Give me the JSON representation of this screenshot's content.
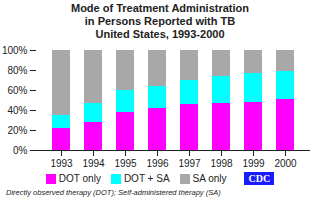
{
  "chart_data": {
    "type": "bar",
    "title": "Mode of Treatment Administration\nin Persons Reported with TB\nUnited States, 1993-2000",
    "categories": [
      "1993",
      "1994",
      "1995",
      "1996",
      "1997",
      "1998",
      "1999",
      "2000"
    ],
    "series": [
      {
        "name": "DOT only",
        "color": "#ff00ff",
        "values": [
          22,
          28,
          38,
          42,
          46,
          47,
          48,
          51
        ]
      },
      {
        "name": "DOT + SA",
        "color": "#00ffff",
        "values": [
          13,
          19,
          22,
          22,
          24,
          27,
          29,
          28
        ]
      },
      {
        "name": "SA only",
        "color": "#a8a8a8",
        "values": [
          65,
          53,
          40,
          36,
          30,
          26,
          23,
          21
        ]
      }
    ],
    "stacked": true,
    "ylim": [
      0,
      100
    ],
    "yticks": [
      {
        "value": 0,
        "label": "0%"
      },
      {
        "value": 20,
        "label": "20%"
      },
      {
        "value": 40,
        "label": "40%"
      },
      {
        "value": 60,
        "label": "60%"
      },
      {
        "value": 80,
        "label": "80%"
      },
      {
        "value": 100,
        "label": "100%"
      }
    ],
    "grid": false,
    "legend": "bottom",
    "annotations": [
      "Directly observed therapy (DOT); Self-administered therapy (SA)",
      "CDC"
    ]
  }
}
